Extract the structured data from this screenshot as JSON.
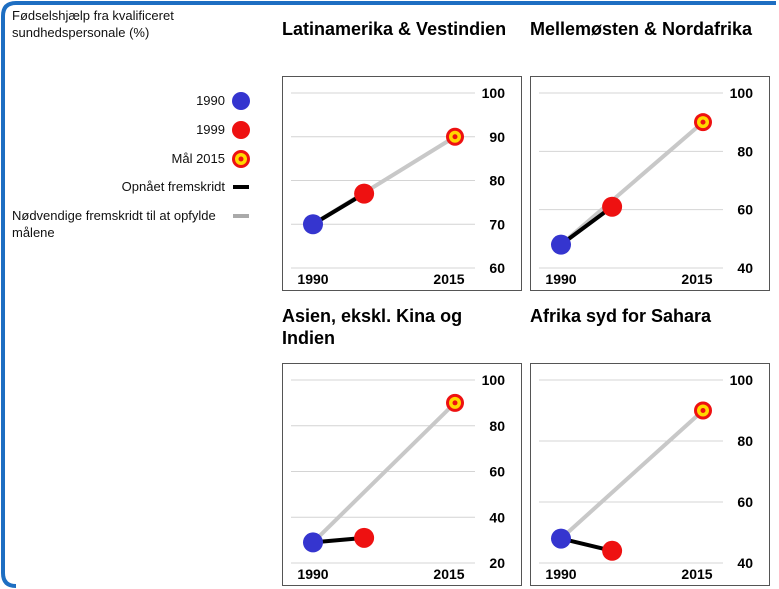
{
  "legend": {
    "title": "Fødselshjælp fra kvalificeret sundhedspersonale (%)",
    "items": [
      "1990",
      "1999",
      "Mål 2015",
      "Opnået fremskridt",
      "Nødvendige fremskridt til at opfylde målene"
    ]
  },
  "chart_data": [
    {
      "type": "line",
      "title": "Latinamerika & Vestindien",
      "x": [
        1990,
        1999,
        2015
      ],
      "values": [
        70,
        77,
        90
      ],
      "xlim": [
        1990,
        2015
      ],
      "xticks": [
        1990,
        2015
      ],
      "ylim": [
        60,
        100
      ],
      "yticks": [
        60,
        70,
        80,
        90,
        100
      ],
      "grid": true
    },
    {
      "type": "line",
      "title": "Mellemøsten & Nordafrika",
      "x": [
        1990,
        1999,
        2015
      ],
      "values": [
        48,
        61,
        90
      ],
      "xlim": [
        1990,
        2015
      ],
      "xticks": [
        1990,
        2015
      ],
      "ylim": [
        40,
        100
      ],
      "yticks": [
        40,
        60,
        80,
        100
      ],
      "grid": true
    },
    {
      "type": "line",
      "title": "Asien, ekskl. Kina og Indien",
      "x": [
        1990,
        1999,
        2015
      ],
      "values": [
        29,
        31,
        90
      ],
      "xlim": [
        1990,
        2015
      ],
      "xticks": [
        1990,
        2015
      ],
      "ylim": [
        20,
        100
      ],
      "yticks": [
        20,
        40,
        60,
        80,
        100
      ],
      "grid": true
    },
    {
      "type": "line",
      "title": "Afrika syd for Sahara",
      "x": [
        1990,
        1999,
        2015
      ],
      "values": [
        48,
        44,
        90
      ],
      "xlim": [
        1990,
        2015
      ],
      "xticks": [
        1990,
        2015
      ],
      "ylim": [
        40,
        100
      ],
      "yticks": [
        40,
        60,
        80,
        100
      ],
      "grid": true
    }
  ]
}
